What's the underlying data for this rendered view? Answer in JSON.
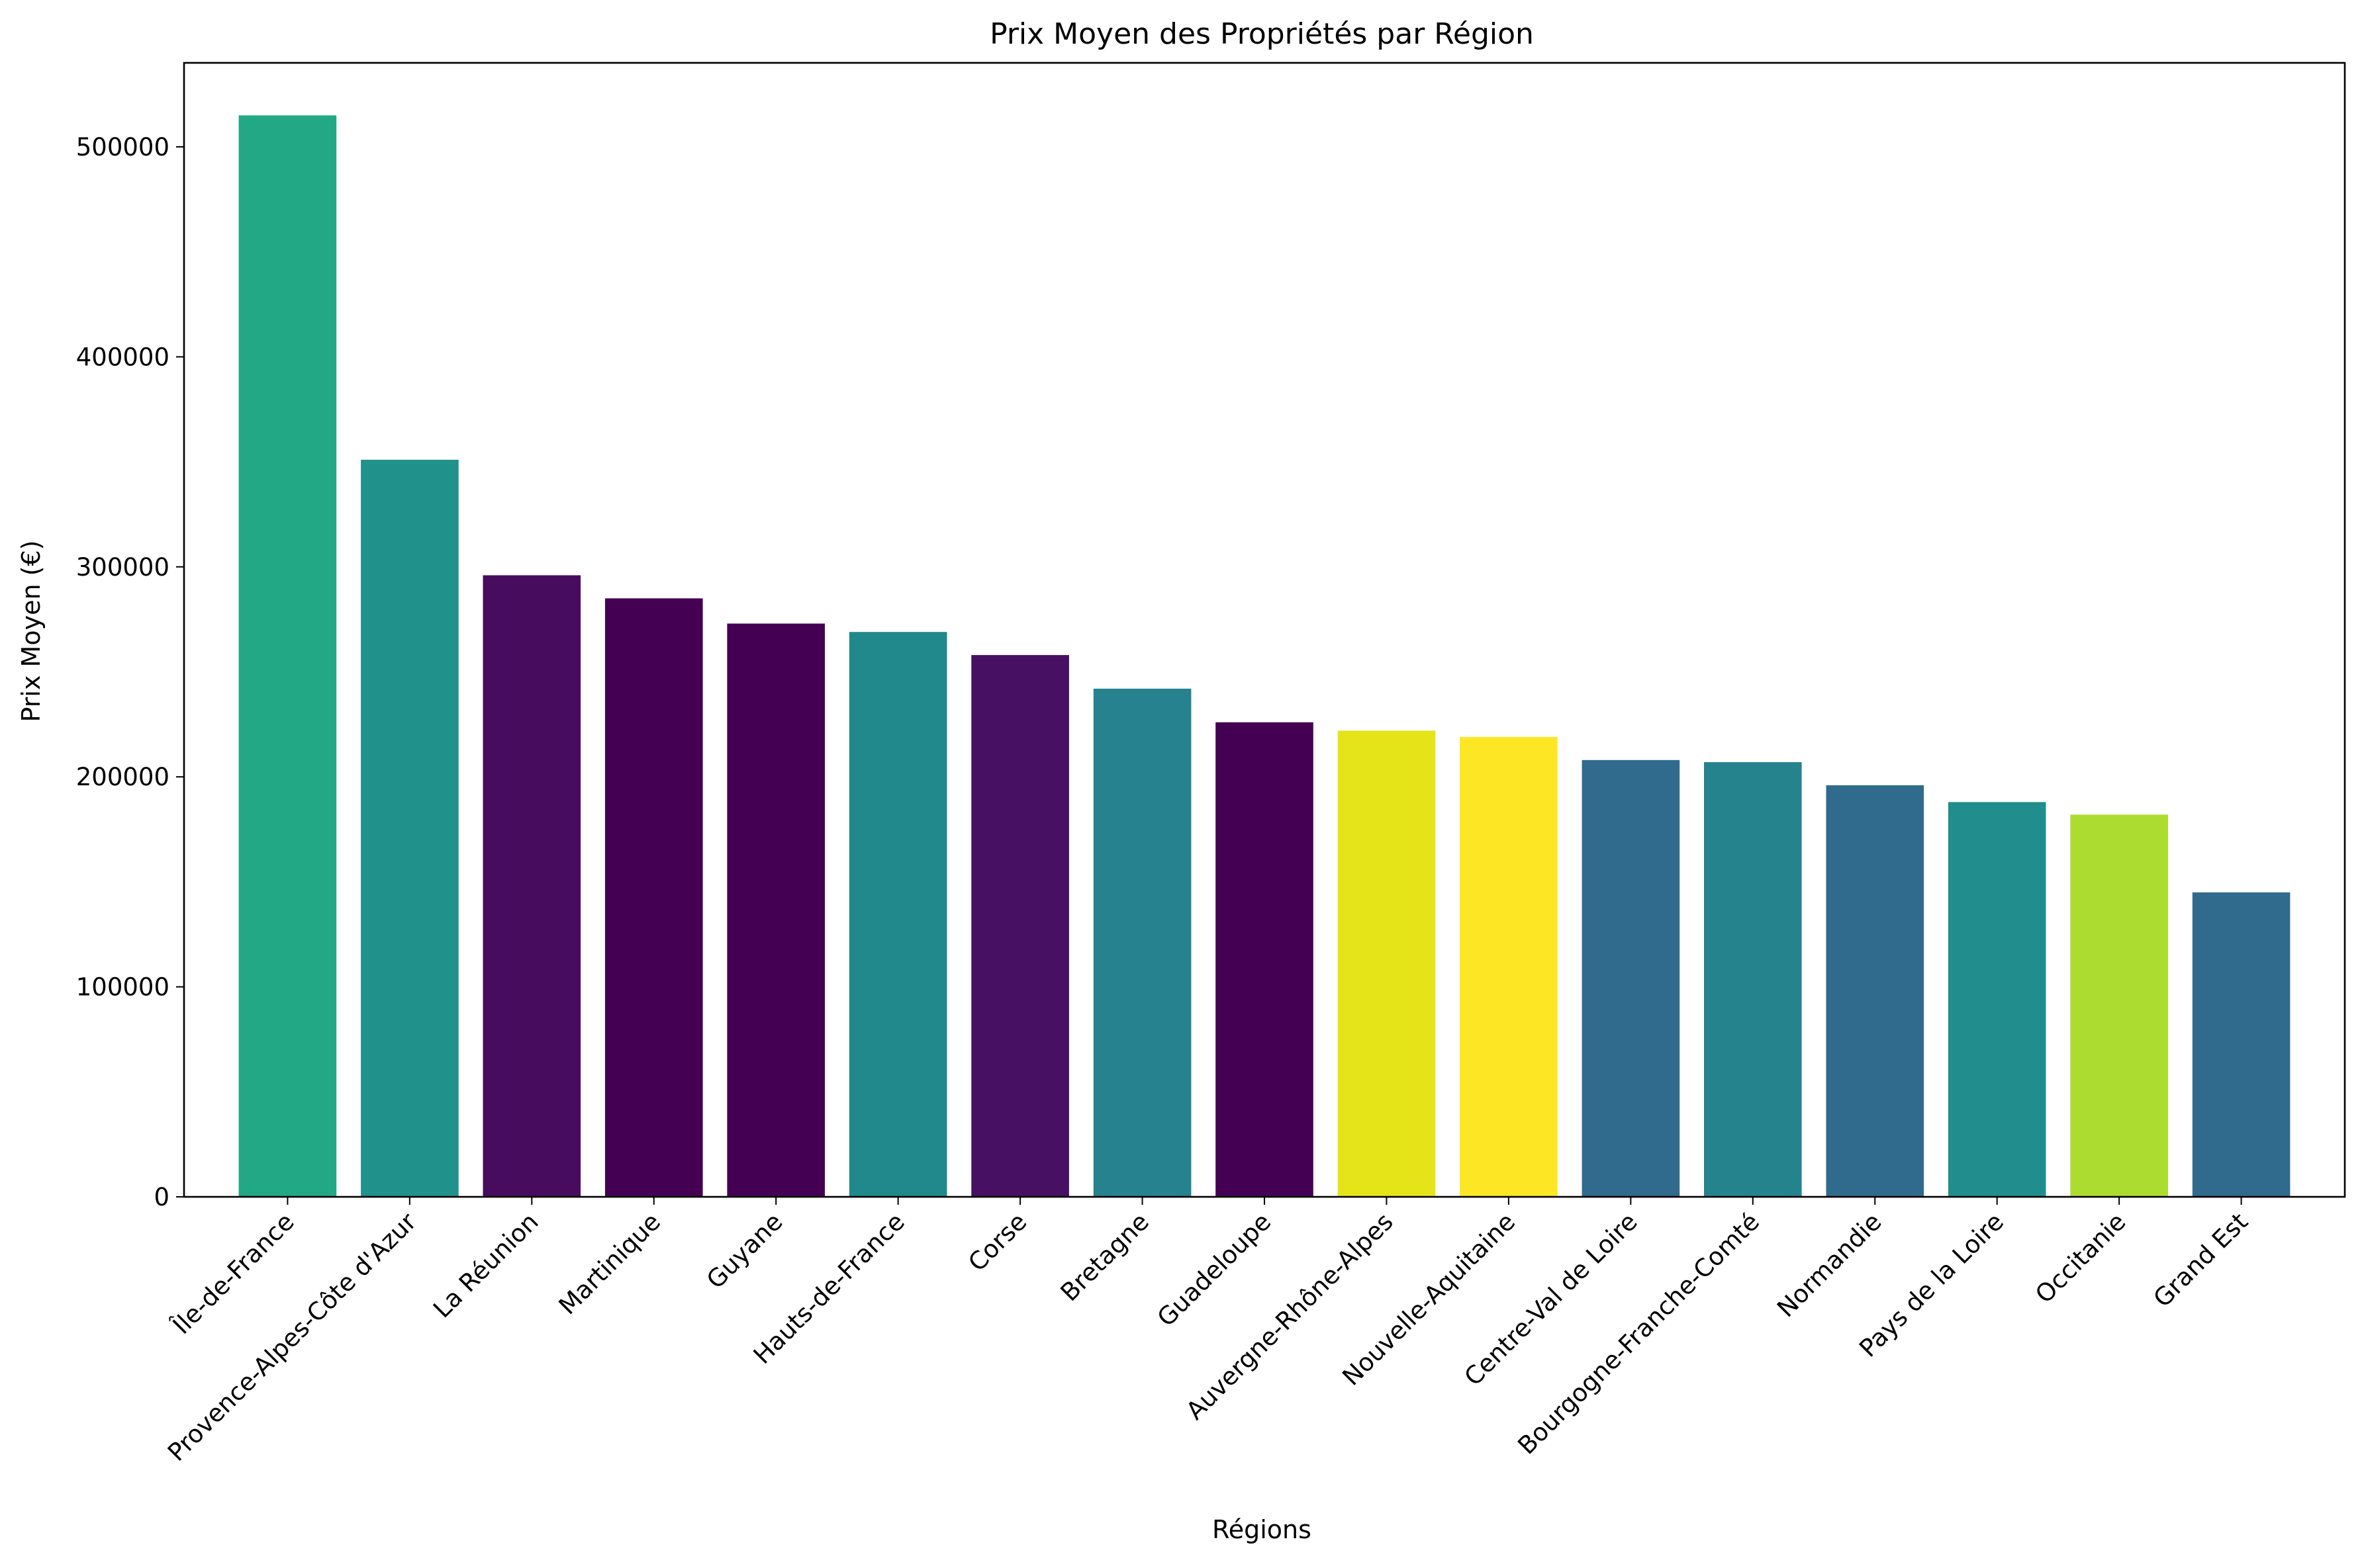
{
  "chart_data": {
    "type": "bar",
    "title": "Prix Moyen des Propriétés par Région",
    "xlabel": "Régions",
    "ylabel": "Prix Moyen (€)",
    "ylim": [
      0,
      540000
    ],
    "yticks": [
      0,
      100000,
      200000,
      300000,
      400000,
      500000
    ],
    "ytick_labels": [
      "0",
      "100000",
      "200000",
      "300000",
      "400000",
      "500000"
    ],
    "grid": false,
    "legend": "none",
    "categories": [
      "Île-de-France",
      "Provence-Alpes-Côte d'Azur",
      "La Réunion",
      "Martinique",
      "Guyane",
      "Hauts-de-France",
      "Corse",
      "Bretagne",
      "Guadeloupe",
      "Auvergne-Rhône-Alpes",
      "Nouvelle-Aquitaine",
      "Centre-Val de Loire",
      "Bourgogne-Franche-Comté",
      "Normandie",
      "Pays de la Loire",
      "Occitanie",
      "Grand Est"
    ],
    "values": [
      515000,
      351000,
      296000,
      285000,
      273000,
      269000,
      258000,
      242000,
      226000,
      222000,
      219000,
      208000,
      207000,
      196000,
      188000,
      182000,
      145000
    ],
    "colors": [
      "#22a884",
      "#21918c",
      "#470c5e",
      "#440154",
      "#440154",
      "#21898c",
      "#471062",
      "#26828e",
      "#440154",
      "#e5e419",
      "#fde725",
      "#306a8d",
      "#25838e",
      "#306b8e",
      "#218e8d",
      "#addc30",
      "#306a8d"
    ]
  }
}
